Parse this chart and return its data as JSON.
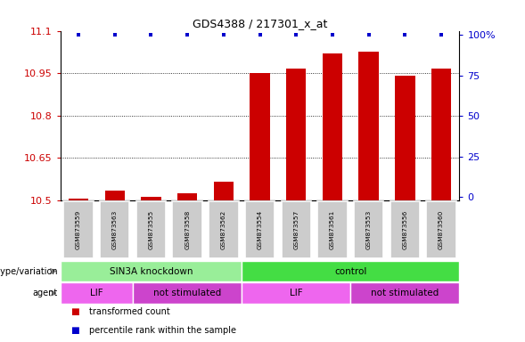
{
  "title": "GDS4388 / 217301_x_at",
  "samples": [
    "GSM873559",
    "GSM873563",
    "GSM873555",
    "GSM873558",
    "GSM873562",
    "GSM873554",
    "GSM873557",
    "GSM873561",
    "GSM873553",
    "GSM873556",
    "GSM873560"
  ],
  "bar_values": [
    10.505,
    10.535,
    10.51,
    10.525,
    10.565,
    10.95,
    10.965,
    11.02,
    11.025,
    10.94,
    10.965
  ],
  "percentile_values": [
    100,
    100,
    100,
    100,
    100,
    100,
    100,
    100,
    100,
    100,
    100
  ],
  "ymin": 10.5,
  "ymax": 11.1,
  "yticks": [
    10.5,
    10.65,
    10.8,
    10.95,
    11.1
  ],
  "ytick_labels": [
    "10.5",
    "10.65",
    "10.8",
    "10.95",
    "11.1"
  ],
  "right_yticks": [
    0,
    25,
    50,
    75,
    100
  ],
  "right_ytick_labels": [
    "0",
    "25",
    "50",
    "75",
    "100%"
  ],
  "bar_color": "#cc0000",
  "percentile_color": "#0000cc",
  "genotype_groups": [
    {
      "label": "SIN3A knockdown",
      "start": 0,
      "end": 5,
      "color": "#99ee99"
    },
    {
      "label": "control",
      "start": 5,
      "end": 11,
      "color": "#44dd44"
    }
  ],
  "agent_groups": [
    {
      "label": "LIF",
      "start": 0,
      "end": 2,
      "color": "#ee66ee"
    },
    {
      "label": "not stimulated",
      "start": 2,
      "end": 5,
      "color": "#cc44cc"
    },
    {
      "label": "LIF",
      "start": 5,
      "end": 8,
      "color": "#ee66ee"
    },
    {
      "label": "not stimulated",
      "start": 8,
      "end": 11,
      "color": "#cc44cc"
    }
  ],
  "legend_items": [
    {
      "label": "transformed count",
      "color": "#cc0000"
    },
    {
      "label": "percentile rank within the sample",
      "color": "#0000cc"
    }
  ]
}
